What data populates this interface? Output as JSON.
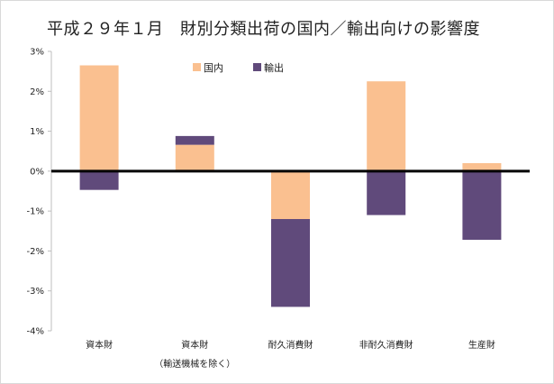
{
  "title": "平成２９年１月　財別分類出荷の国内／輸出向けの影響度",
  "colors": {
    "domestic": "#fac090",
    "export": "#604a7b",
    "zero_line": "#000000",
    "axis": "#bfbfbf"
  },
  "chart_data": {
    "type": "bar",
    "stacked": true,
    "title": "平成２９年１月　財別分類出荷の国内／輸出向けの影響度",
    "categories": [
      "資本財",
      "資本財",
      "耐久消費財",
      "非耐久消費財",
      "生産財"
    ],
    "category_sublabels": [
      "",
      "（輸送機械を除く）",
      "",
      "",
      ""
    ],
    "series": [
      {
        "name": "国内",
        "values": [
          2.65,
          0.66,
          -1.2,
          2.25,
          0.2
        ]
      },
      {
        "name": "輸出",
        "values": [
          -0.47,
          0.22,
          -2.2,
          -1.1,
          -1.72
        ]
      }
    ],
    "ylim": [
      -4,
      3
    ],
    "yticks": [
      3,
      2,
      1,
      0,
      -1,
      -2,
      -3,
      -4
    ],
    "ytick_labels": [
      "3%",
      "2%",
      "1%",
      "0%",
      "-1%",
      "-2%",
      "-3%",
      "-4%"
    ],
    "legend": [
      "国内",
      "輸出"
    ],
    "legend_position": "top-center",
    "grid": false
  }
}
